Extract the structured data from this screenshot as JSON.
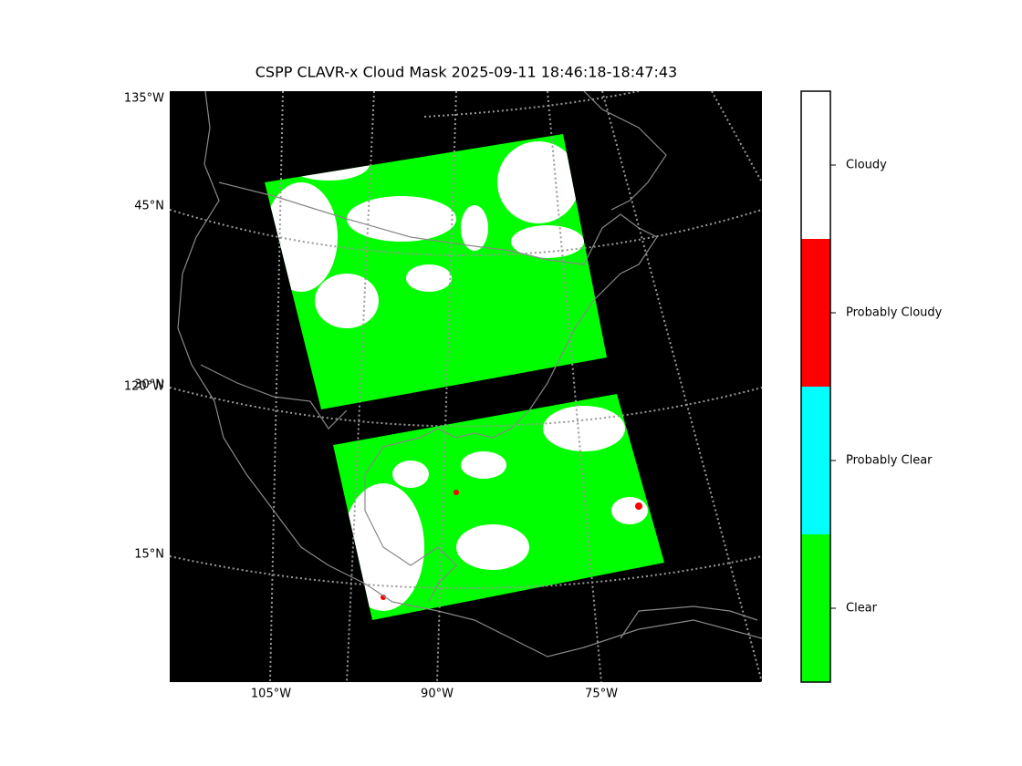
{
  "title": "CSPP CLAVR-x Cloud Mask 2025-09-11 18:46:18-18:47:43",
  "map": {
    "left_labels": [
      "135°W",
      "45°N",
      "120°W",
      "30°N",
      "15°N"
    ],
    "bottom_labels": [
      "105°W",
      "90°W",
      "75°W"
    ]
  },
  "colorbar": {
    "classes": [
      {
        "label": "Clear",
        "color": "#00ff00"
      },
      {
        "label": "Probably Clear",
        "color": "#00ffff"
      },
      {
        "label": "Probably Cloudy",
        "color": "#ff0000"
      },
      {
        "label": "Cloudy",
        "color": "#ffffff"
      }
    ]
  }
}
